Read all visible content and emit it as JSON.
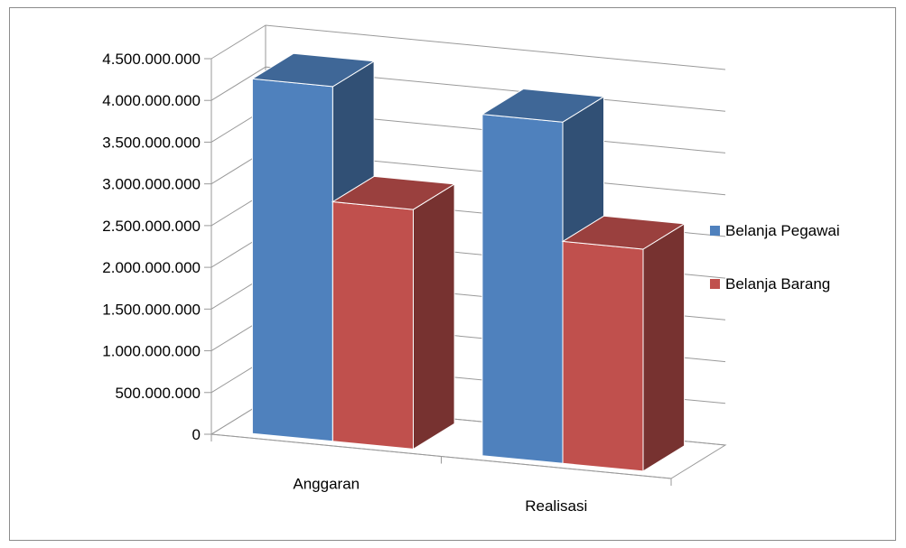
{
  "chart_data": {
    "type": "bar",
    "style": "3d-clustered-column",
    "title": "",
    "xlabel": "",
    "ylabel": "",
    "categories": [
      "Anggaran",
      "Realisasi"
    ],
    "series": [
      {
        "name": "Belanja Pegawai",
        "values": [
          4250000000,
          4090000000
        ],
        "color": "#4f81bd"
      },
      {
        "name": "Belanja Barang",
        "values": [
          2870000000,
          2660000000
        ],
        "color": "#c0504d"
      }
    ],
    "ylim": [
      0,
      4500000000
    ],
    "yticks": [
      0,
      500000000,
      1000000000,
      1500000000,
      2000000000,
      2500000000,
      3000000000,
      3500000000,
      4000000000,
      4500000000
    ],
    "ytick_labels": [
      "0",
      "500.000.000",
      "1.000.000.000",
      "1.500.000.000",
      "2.000.000.000",
      "2.500.000.000",
      "3.000.000.000",
      "3.500.000.000",
      "4.000.000.000",
      "4.500.000.000"
    ],
    "grid": true,
    "legend_position": "right"
  }
}
